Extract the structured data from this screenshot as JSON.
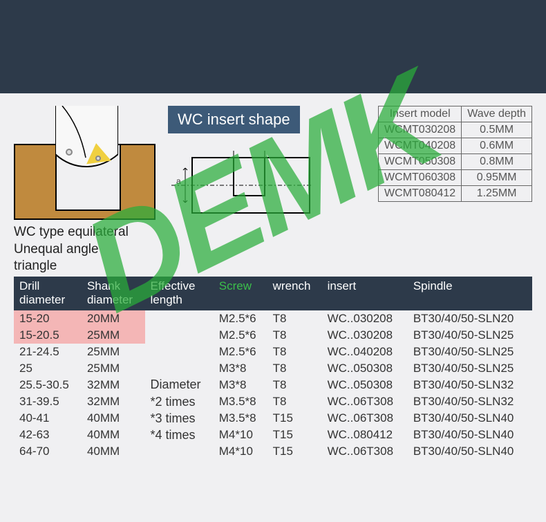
{
  "watermark": "DEMK",
  "wc_caption_line1": "WC type equilateral",
  "wc_caption_line2": "Unequal angle",
  "wc_caption_line3": "triangle",
  "wc_title": "WC insert shape",
  "insert_table": {
    "headers": [
      "Insert model",
      "Wave depth"
    ],
    "rows": [
      [
        "WCMT030208",
        "0.5MM"
      ],
      [
        "WCMT040208",
        "0.6MM"
      ],
      [
        "WCMT050308",
        "0.8MM"
      ],
      [
        "WCMT060308",
        "0.95MM"
      ],
      [
        "WCMT080412",
        "1.25MM"
      ]
    ]
  },
  "main_table": {
    "headers": [
      {
        "text": "Drill\ndiameter",
        "green": false
      },
      {
        "text": "Shank\ndiameter",
        "green": false
      },
      {
        "text": "Effective\nlength",
        "green": false
      },
      {
        "text": "Screw",
        "green": true
      },
      {
        "text": "wrench",
        "green": false
      },
      {
        "text": "insert",
        "green": false
      },
      {
        "text": "Spindle",
        "green": false
      }
    ],
    "effective_note": [
      "Diameter",
      "*2 times",
      "*3 times",
      "*4 times"
    ],
    "rows": [
      {
        "hl": true,
        "cells": [
          "15-20",
          "20MM",
          "",
          "M2.5*6",
          "T8",
          "WC..030208",
          "BT30/40/50-SLN20"
        ]
      },
      {
        "hl": true,
        "cells": [
          "15-20.5",
          "25MM",
          "",
          "M2.5*6",
          "T8",
          "WC..030208",
          "BT30/40/50-SLN25"
        ]
      },
      {
        "hl": false,
        "cells": [
          "21-24.5",
          "25MM",
          "",
          "M2.5*6",
          "T8",
          "WC..040208",
          "BT30/40/50-SLN25"
        ]
      },
      {
        "hl": false,
        "cells": [
          "25",
          "25MM",
          "",
          "M3*8",
          "T8",
          "WC..050308",
          "BT30/40/50-SLN25"
        ]
      },
      {
        "hl": false,
        "cells": [
          "25.5-30.5",
          "32MM",
          "",
          "M3*8",
          "T8",
          "WC..050308",
          "BT30/40/50-SLN32"
        ]
      },
      {
        "hl": false,
        "cells": [
          "31-39.5",
          "32MM",
          "",
          "M3.5*8",
          "T8",
          "WC..06T308",
          "BT30/40/50-SLN32"
        ]
      },
      {
        "hl": false,
        "cells": [
          "40-41",
          "40MM",
          "",
          "M3.5*8",
          "T15",
          "WC..06T308",
          "BT30/40/50-SLN40"
        ]
      },
      {
        "hl": false,
        "cells": [
          "42-63",
          "40MM",
          "",
          "M4*10",
          "T15",
          "WC..080412",
          "BT30/40/50-SLN40"
        ]
      },
      {
        "hl": false,
        "cells": [
          "64-70",
          "40MM",
          "",
          "M4*10",
          "T15",
          "WC..06T308",
          "BT30/40/50-SLN40"
        ]
      }
    ]
  },
  "colors": {
    "top_band": "#2d3a4a",
    "material": "#c08a3e",
    "insert_yellow": "#f0d040",
    "header_bg": "#2d3a4a",
    "highlight_pink": "#f4b6b6",
    "red_text": "#d40000",
    "green_text": "#3bbf4a",
    "watermark_green": "#2aad3a"
  }
}
